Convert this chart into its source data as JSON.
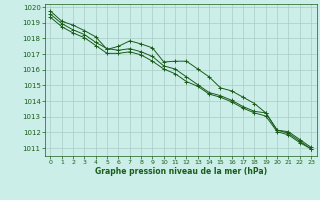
{
  "bg_color": "#cceee8",
  "grid_color": "#aaccc8",
  "line_color": "#1a5c1a",
  "marker_color": "#1a5c1a",
  "xlabel": "Graphe pression niveau de la mer (hPa)",
  "xlabel_color": "#1a5c1a",
  "tick_color": "#1a5c1a",
  "xlim": [
    -0.5,
    23.5
  ],
  "ylim": [
    1010.5,
    1020.2
  ],
  "yticks": [
    1011,
    1012,
    1013,
    1014,
    1015,
    1016,
    1017,
    1018,
    1019,
    1020
  ],
  "xticks": [
    0,
    1,
    2,
    3,
    4,
    5,
    6,
    7,
    8,
    9,
    10,
    11,
    12,
    13,
    14,
    15,
    16,
    17,
    18,
    19,
    20,
    21,
    22,
    23
  ],
  "series": [
    [
      1019.75,
      1019.1,
      1018.85,
      1018.5,
      1018.1,
      1017.3,
      1017.5,
      1017.85,
      1017.65,
      1017.4,
      1016.5,
      1016.55,
      1016.55,
      1016.05,
      1015.55,
      1014.85,
      1014.65,
      1014.25,
      1013.85,
      1013.25,
      1012.15,
      1012.05,
      1011.55,
      1011.05
    ],
    [
      1019.55,
      1018.95,
      1018.55,
      1018.25,
      1017.75,
      1017.35,
      1017.25,
      1017.35,
      1017.15,
      1016.85,
      1016.25,
      1016.05,
      1015.55,
      1015.05,
      1014.55,
      1014.35,
      1014.05,
      1013.65,
      1013.35,
      1013.25,
      1012.15,
      1011.95,
      1011.45,
      1010.95
    ],
    [
      1019.35,
      1018.75,
      1018.35,
      1018.05,
      1017.55,
      1017.05,
      1017.05,
      1017.15,
      1016.95,
      1016.55,
      1016.05,
      1015.75,
      1015.25,
      1014.95,
      1014.45,
      1014.25,
      1013.95,
      1013.55,
      1013.25,
      1013.05,
      1012.05,
      1011.85,
      1011.35,
      1010.95
    ]
  ]
}
